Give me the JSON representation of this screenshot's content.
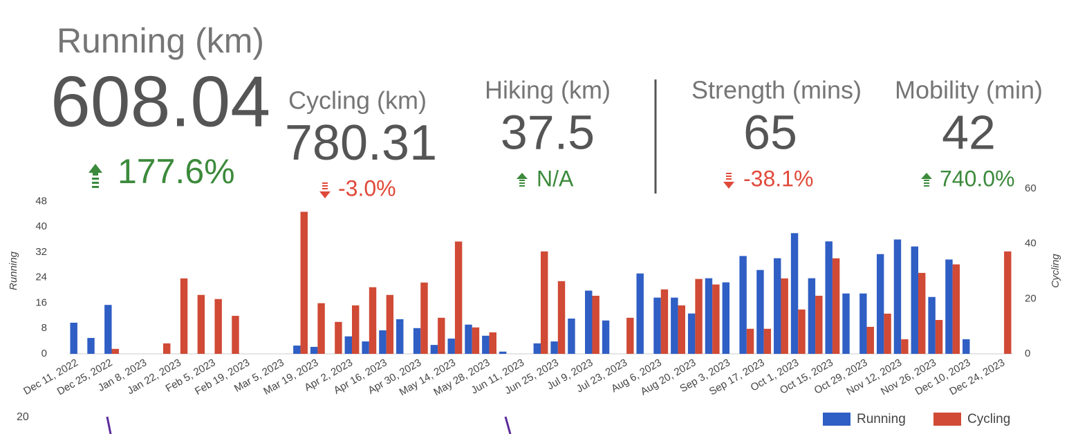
{
  "scorecards": [
    {
      "label": "Running (km)",
      "value": 608.04,
      "change": "177.6%"
    },
    {
      "label": "Cycling (km)",
      "value": 780.31,
      "change": "-3.0%"
    },
    {
      "label": "Hiking (km)",
      "value": 37.5,
      "change": "N/A"
    },
    {
      "label": "Strength (mins)",
      "value": 65,
      "change": "-38.1%"
    },
    {
      "label": "Mobility (min)",
      "value": 42,
      "change": "740.0%"
    }
  ],
  "stray_label": "20",
  "chart_data": {
    "type": "bar",
    "y_label": "Running",
    "y2_label": "Cycling",
    "categories": [
      "Dec 11, 2022",
      null,
      "Dec 25, 2022",
      null,
      "Jan 8, 2023",
      null,
      "Jan 22, 2023",
      null,
      "Feb 5, 2023",
      null,
      "Feb 19, 2023",
      null,
      "Mar 5, 2023",
      null,
      "Mar 19, 2023",
      null,
      "Apr 2, 2023",
      null,
      "Apr 16, 2023",
      null,
      "Apr 30, 2023",
      null,
      "May 14, 2023",
      null,
      "May 28, 2023",
      null,
      "Jun 11, 2023",
      null,
      "Jun 25, 2023",
      null,
      "Jul 9, 2023",
      null,
      "Jul 23, 2023",
      null,
      "Aug 6, 2023",
      null,
      "Aug 20, 2023",
      null,
      "Sep 3, 2023",
      null,
      "Sep 17, 2023",
      null,
      "Oct 1, 2023",
      null,
      "Oct 15, 2023",
      null,
      "Oct 29, 2023",
      null,
      "Nov 12, 2023",
      null,
      "Nov 26, 2023",
      null,
      "Dec 10, 2023",
      null,
      "Dec 24, 2023"
    ],
    "series": [
      {
        "name": "Running",
        "color": "#2f5ec4",
        "axis": "y",
        "values": [
          9.8,
          5,
          15.4,
          0,
          0,
          0,
          0,
          0,
          0,
          0,
          0,
          0,
          0,
          2.6,
          2.2,
          0,
          5.5,
          3.9,
          7.4,
          10.9,
          8.1,
          2.8,
          4.8,
          9.2,
          5.7,
          0.7,
          0,
          3.3,
          3.9,
          11.1,
          19.9,
          10.5,
          0,
          25.3,
          17.7,
          17.7,
          12.7,
          23.8,
          22.5,
          30.8,
          26.4,
          30.1,
          38,
          23.8,
          35.4,
          19,
          19,
          31.4,
          36,
          33.8,
          17.9,
          29.7,
          4.6,
          0,
          0
        ]
      },
      {
        "name": "Cycling",
        "color": "#d04a35",
        "axis": "y2",
        "values": [
          0,
          0,
          1.8,
          0,
          0,
          3.8,
          27.4,
          21.4,
          19.9,
          13.8,
          0,
          0,
          0,
          51.6,
          18.4,
          11.6,
          17.6,
          24.2,
          21.4,
          0,
          25.9,
          13.1,
          40.8,
          9.6,
          7.8,
          0,
          0,
          37.2,
          26.4,
          0,
          21.1,
          0,
          13.1,
          0,
          23.4,
          17.6,
          27.2,
          25.2,
          0,
          9.1,
          9.1,
          27.4,
          16.1,
          21.1,
          34.7,
          0,
          9.8,
          14.6,
          5.3,
          29.4,
          12.3,
          32.5,
          0,
          0,
          37.2
        ]
      }
    ],
    "ylim": [
      0,
      52
    ],
    "yticks": [
      0,
      8,
      16,
      24,
      32,
      40,
      48
    ],
    "y2lim": [
      0,
      60
    ],
    "y2ticks": [
      0,
      20,
      40,
      60
    ],
    "grid": false,
    "legend": "bottom-right"
  }
}
